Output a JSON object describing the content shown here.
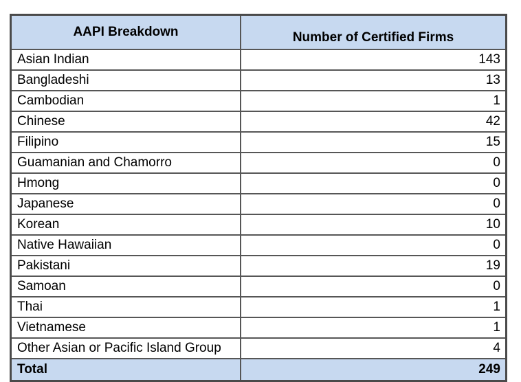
{
  "table": {
    "columns": [
      {
        "label": "AAPI Breakdown"
      },
      {
        "label": "Number of Certified Firms"
      }
    ],
    "rows": [
      {
        "group": "Asian Indian",
        "count": "143"
      },
      {
        "group": "Bangladeshi",
        "count": "13"
      },
      {
        "group": "Cambodian",
        "count": "1"
      },
      {
        "group": "Chinese",
        "count": "42"
      },
      {
        "group": "Filipino",
        "count": "15"
      },
      {
        "group": "Guamanian and Chamorro",
        "count": "0"
      },
      {
        "group": "Hmong",
        "count": "0"
      },
      {
        "group": "Japanese",
        "count": "0"
      },
      {
        "group": "Korean",
        "count": "10"
      },
      {
        "group": "Native Hawaiian",
        "count": "0"
      },
      {
        "group": "Pakistani",
        "count": "19"
      },
      {
        "group": "Samoan",
        "count": "0"
      },
      {
        "group": "Thai",
        "count": "1"
      },
      {
        "group": "Vietnamese",
        "count": "1"
      },
      {
        "group": "Other Asian or Pacific Island Group",
        "count": "4"
      }
    ],
    "total": {
      "label": "Total",
      "count": "249"
    }
  },
  "colors": {
    "header_bg": "#c7d9f0",
    "border": "#565656",
    "outer_border": "#4a4a4a",
    "text": "#000000"
  }
}
